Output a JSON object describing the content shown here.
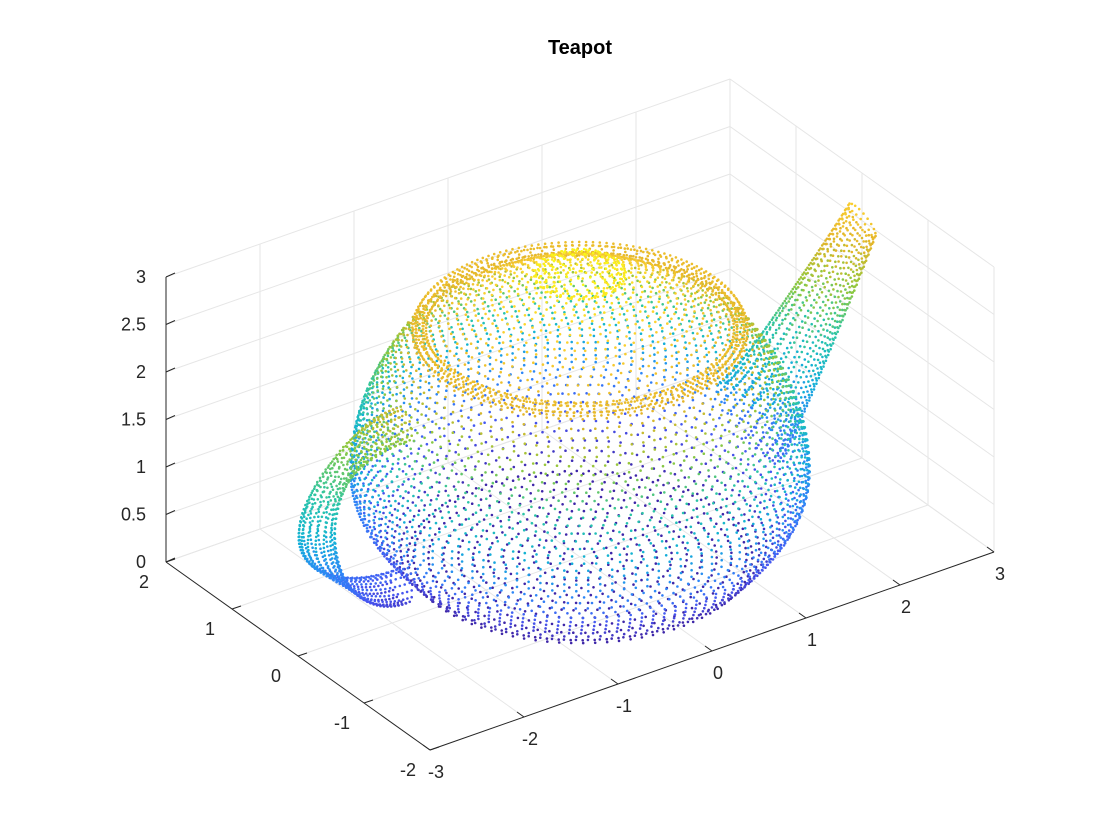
{
  "chart_data": {
    "type": "scatter3",
    "title": "Teapot",
    "colormap": "parula",
    "colormap_stops": [
      "#3e26a8",
      "#4755f2",
      "#2e87f7",
      "#12b1d6",
      "#2bc5a7",
      "#8fc83d",
      "#e4b52a",
      "#fcd131",
      "#f9fb15"
    ],
    "color_by": "z",
    "xlim": [
      -3,
      3
    ],
    "ylim": [
      -2,
      2
    ],
    "zlim": [
      0,
      3
    ],
    "x_ticks": [
      -3,
      -2,
      -1,
      0,
      1,
      2,
      3
    ],
    "y_ticks": [
      -2,
      -1,
      0,
      1,
      2
    ],
    "z_ticks": [
      0,
      0.5,
      1,
      1.5,
      2,
      2.5,
      3
    ],
    "grid": true,
    "xlabel": "",
    "ylabel": "",
    "zlabel": "",
    "marker": "point",
    "teapot": {
      "body_radius_max": 2.0,
      "body_radius_base": 1.5,
      "body_height": 2.4,
      "lid_rim_radius": 1.4,
      "knob_radius": 0.4,
      "knob_top_z": 3.1,
      "spout_tip": [
        3.0,
        0.0,
        2.5
      ],
      "handle_outer_x": -2.9
    }
  },
  "labels": {
    "title": "Teapot",
    "x_ticks": [
      "-3",
      "-2",
      "-1",
      "0",
      "1",
      "2",
      "3"
    ],
    "y_ticks": [
      "-2",
      "-1",
      "0",
      "1",
      "2"
    ],
    "z_ticks": [
      "0",
      "0.5",
      "1",
      "1.5",
      "2",
      "2.5",
      "3"
    ]
  }
}
